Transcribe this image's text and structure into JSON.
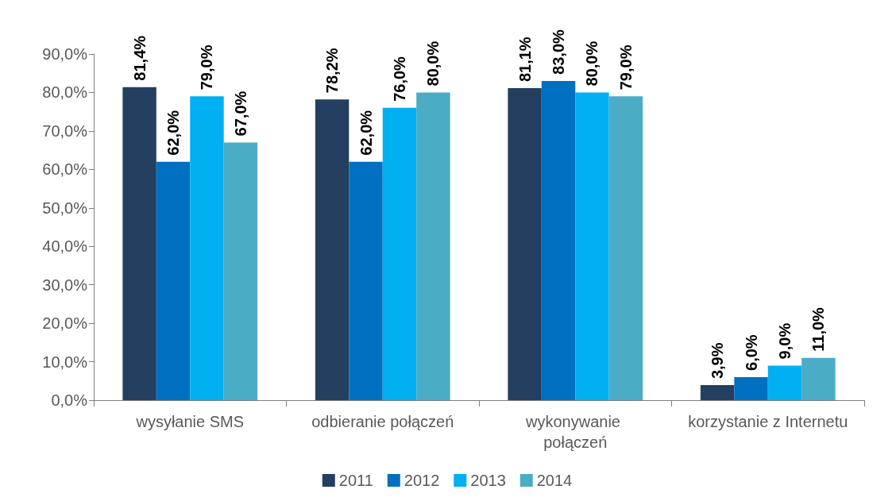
{
  "chart_data": {
    "type": "bar",
    "categories": [
      "wysyłanie SMS",
      "odbieranie połączeń",
      "wykonywanie połączeń",
      "korzystanie z Internetu"
    ],
    "series": [
      {
        "name": "2011",
        "color": "#243f60",
        "values": [
          81.4,
          78.2,
          81.1,
          3.9
        ],
        "value_labels": [
          "81,4%",
          "78,2%",
          "81,1%",
          "3,9%"
        ]
      },
      {
        "name": "2012",
        "color": "#0070c0",
        "values": [
          62.0,
          62.0,
          83.0,
          6.0
        ],
        "value_labels": [
          "62,0%",
          "62,0%",
          "83,0%",
          "6,0%"
        ]
      },
      {
        "name": "2013",
        "color": "#00b0f0",
        "values": [
          79.0,
          76.0,
          80.0,
          9.0
        ],
        "value_labels": [
          "79,0%",
          "76,0%",
          "80,0%",
          "9,0%"
        ]
      },
      {
        "name": "2014",
        "color": "#4bacc6",
        "values": [
          67.0,
          80.0,
          79.0,
          11.0
        ],
        "value_labels": [
          "67,0%",
          "80,0%",
          "79,0%",
          "11,0%"
        ]
      }
    ],
    "ylim": [
      0,
      90
    ],
    "yticks": [
      {
        "value": 0,
        "label": "0,0%"
      },
      {
        "value": 10,
        "label": "10,0%"
      },
      {
        "value": 20,
        "label": "20,0%"
      },
      {
        "value": 30,
        "label": "30,0%"
      },
      {
        "value": 40,
        "label": "40,0%"
      },
      {
        "value": 50,
        "label": "50,0%"
      },
      {
        "value": 60,
        "label": "60,0%"
      },
      {
        "value": 70,
        "label": "70,0%"
      },
      {
        "value": 80,
        "label": "80,0%"
      },
      {
        "value": 90,
        "label": "90,0%"
      }
    ],
    "grid": false,
    "legend": "bottom"
  }
}
